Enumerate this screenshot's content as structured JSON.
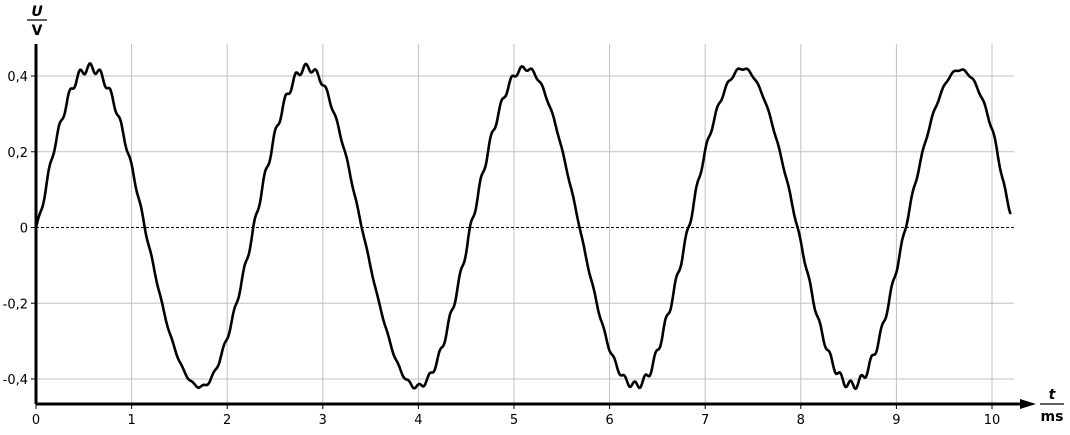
{
  "chart_data": {
    "type": "line",
    "title": "",
    "y_label_symbol": "U",
    "y_label_unit": "V",
    "x_label_symbol": "t",
    "x_label_unit": "ms",
    "xlim": [
      0,
      10.2
    ],
    "ylim": [
      -0.47,
      0.47
    ],
    "x_ticks": [
      "0",
      "1",
      "2",
      "3",
      "4",
      "5",
      "6",
      "7",
      "8",
      "9",
      "10"
    ],
    "y_ticks": [
      {
        "value": 0.4,
        "label": "0,4"
      },
      {
        "value": 0.2,
        "label": "0,2"
      },
      {
        "value": 0,
        "label": "0"
      },
      {
        "value": -0.2,
        "label": "-0,2"
      },
      {
        "value": -0.4,
        "label": "-0,4"
      }
    ],
    "grid": true,
    "zero_line": "dashed",
    "line_color": "#000000",
    "grid_color": "#c0c0c0",
    "series": [
      {
        "x_step": 0.2,
        "x_start": 0,
        "values": [
          0,
          0.22,
          0.38,
          0.42,
          0.34,
          0.16,
          -0.07,
          -0.28,
          -0.4,
          -0.41,
          -0.29,
          -0.09,
          0.14,
          0.33,
          0.42,
          0.38,
          0.23,
          0.01,
          -0.21,
          -0.37,
          -0.42,
          -0.35,
          -0.17,
          0.06,
          0.27,
          0.4,
          0.41,
          0.3,
          0.1,
          -0.13,
          -0.32,
          -0.41,
          -0.39,
          -0.24,
          -0.03,
          0.2,
          0.36,
          0.42,
          0.35,
          0.18,
          -0.04,
          -0.26,
          -0.39,
          -0.41,
          -0.31,
          -0.11,
          0.12,
          0.31,
          0.41,
          0.39,
          0.26,
          0.04
        ]
      }
    ]
  }
}
